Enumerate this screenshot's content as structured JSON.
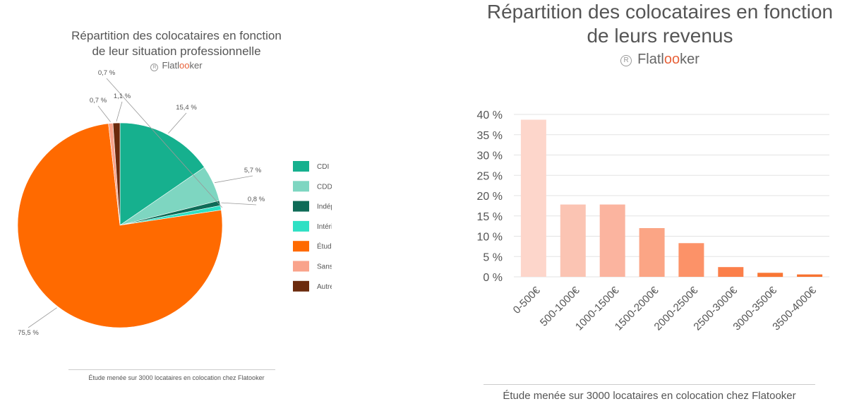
{
  "chart_data": [
    {
      "type": "pie",
      "title": "Répartition des colocataires en fonction de leur situation professionnelle",
      "title_lines": [
        "Répartition des colocataires en fonction",
        "de leur situation professionnelle"
      ],
      "legend_position": "right",
      "slices": [
        {
          "label": "CDI",
          "value": 15.4,
          "value_label": "15,4 %",
          "color": "#16b08e"
        },
        {
          "label": "CDD",
          "value": 5.7,
          "value_label": "5,7 %",
          "color": "#7ed6c1"
        },
        {
          "label": "Indépendant",
          "value": 0.8,
          "value_label": "0,8 %",
          "color": "#0e6b57"
        },
        {
          "label": "Intérimaire",
          "value": 0.7,
          "value_label": "0,7 %",
          "color": "#2fe0c4"
        },
        {
          "label": "Étudiant",
          "value": 75.5,
          "value_label": "75,5 %",
          "color": "#ff6a00"
        },
        {
          "label": "Sans emploi",
          "value": 0.7,
          "value_label": "0,7 %",
          "color": "#f9a38b"
        },
        {
          "label": "Autre",
          "value": 1.1,
          "value_label": "1,1 %",
          "color": "#6b2a0d"
        }
      ]
    },
    {
      "type": "bar",
      "title": "Répartition des colocataires en fonction de leurs revenus",
      "title_lines": [
        "Répartition des colocataires en fonction",
        "de leurs revenus"
      ],
      "categories": [
        "0-500€",
        "500-1000€",
        "1000-1500€",
        "1500-2000€",
        "2000-2500€",
        "2500-3000€",
        "3000-3500€",
        "3500-4000€"
      ],
      "values": [
        38.7,
        17.8,
        17.8,
        12.0,
        8.3,
        2.4,
        1.0,
        0.6
      ],
      "colors": [
        "#fdd6cb",
        "#fbc4b3",
        "#fbb49f",
        "#fba585",
        "#fc9268",
        "#fb7f4a",
        "#f97634",
        "#f77230"
      ],
      "ylim": [
        0,
        40
      ],
      "yticks": [
        0,
        5,
        10,
        15,
        20,
        25,
        30,
        35,
        40
      ],
      "ytick_labels": [
        "0 %",
        "5 %",
        "10 %",
        "15 %",
        "20 %",
        "25 %",
        "30 %",
        "35 %",
        "40 %"
      ],
      "grid": true
    }
  ],
  "brand": {
    "prefix": "Flatl",
    "oo": "oo",
    "suffix": "ker",
    "reg": "R"
  },
  "footer": "Étude menée sur 3000 locataires en colocation chez Flatooker"
}
